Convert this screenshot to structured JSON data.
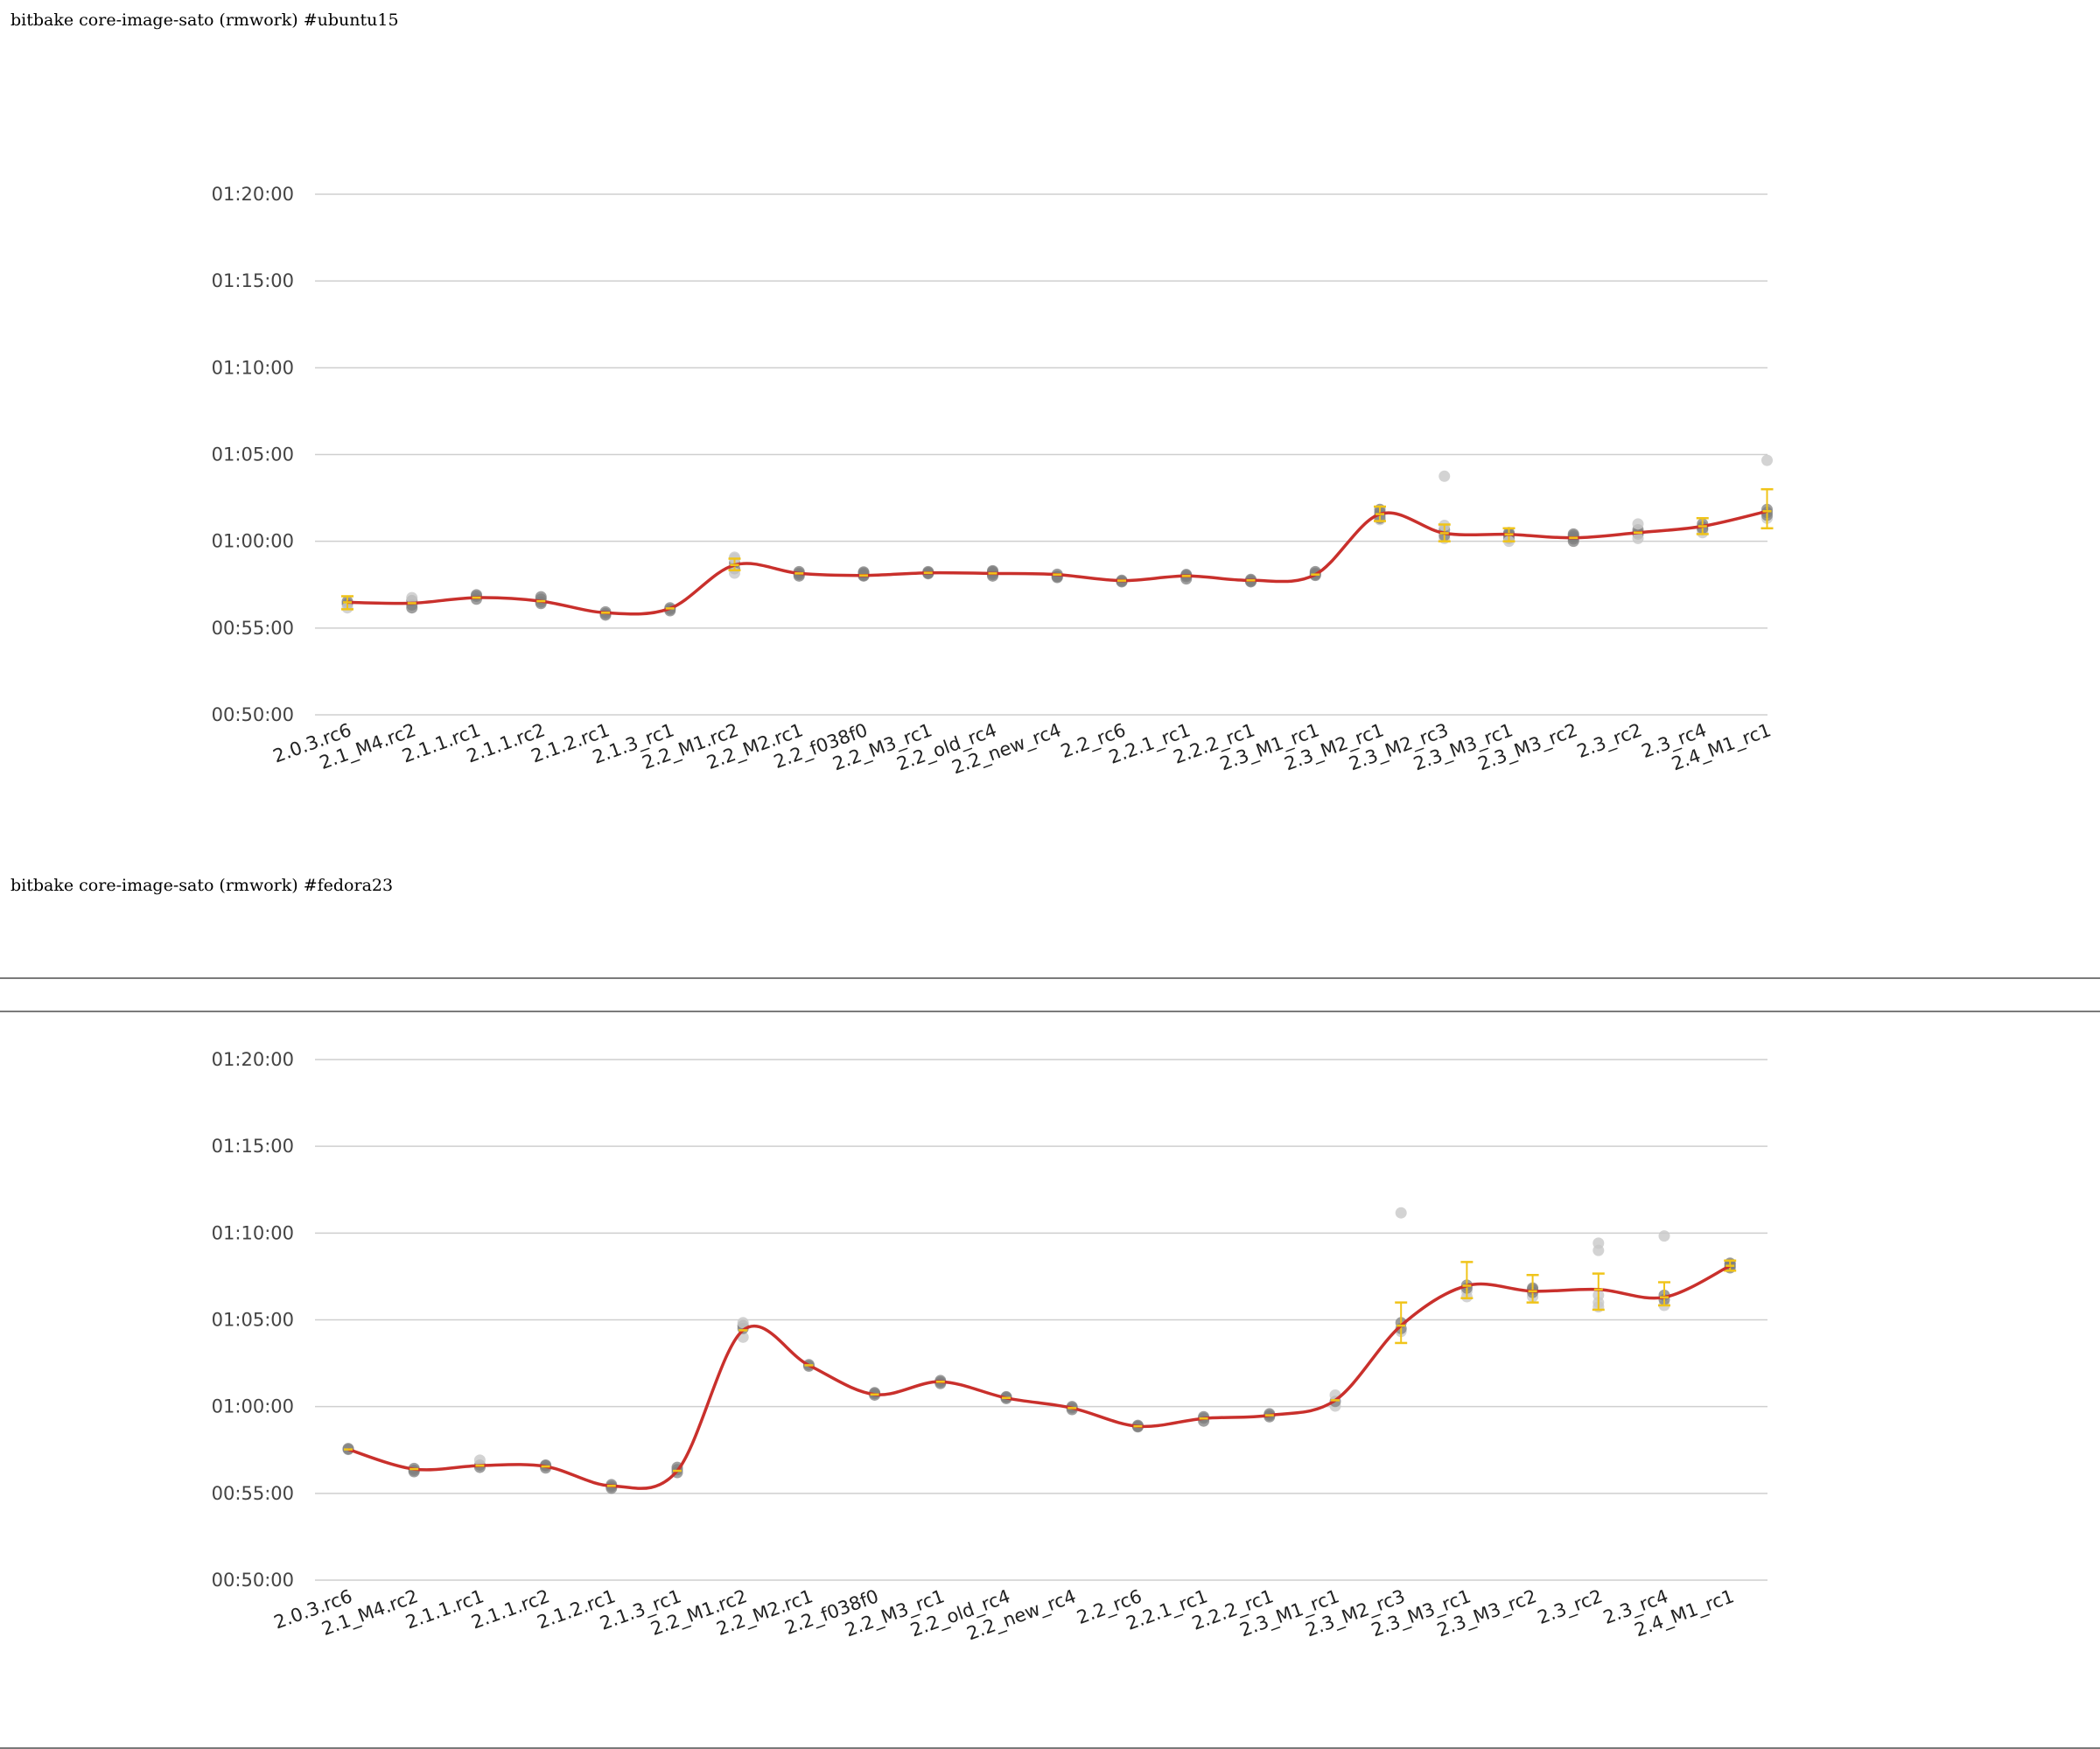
{
  "colors": {
    "trend_line": "#c9302c",
    "error_bar": "#f0c419",
    "run_point_dark": "#7f7f7f",
    "run_point_light": "#c8c8c8",
    "gridline": "#cfcfcf"
  },
  "charts": [
    {
      "title": "bitbake core-image-sato (rmwork) #ubuntu15",
      "chart_data": {
        "type": "line",
        "categories": [
          "2.0.3.rc6",
          "2.1_M4.rc2",
          "2.1.1.rc1",
          "2.1.1.rc2",
          "2.1.2.rc1",
          "2.1.3_rc1",
          "2.2_M1.rc2",
          "2.2_M2.rc1",
          "2.2_f038f0",
          "2.2_M3_rc1",
          "2.2_old_rc4",
          "2.2_new_rc4",
          "2.2_rc6",
          "2.2.1_rc1",
          "2.2.2_rc1",
          "2.3_M1_rc1",
          "2.3_M2_rc1",
          "2.3_M2_rc3",
          "2.3_M3_rc1",
          "2.3_M3_rc2",
          "2.3_rc2",
          "2.3_rc4",
          "2.4_M1_rc1"
        ],
        "y_unit": "seconds",
        "ylim": [
          3000,
          4800
        ],
        "yticks": [
          3000,
          3300,
          3600,
          3900,
          4200,
          4500,
          4800
        ],
        "ytick_labels": [
          "00:50:00",
          "00:55:00",
          "01:00:00",
          "01:05:00",
          "01:10:00",
          "01:15:00",
          "01:20:00"
        ],
        "grid": true,
        "legend": "none",
        "series": [
          {
            "values": [
              3389,
              3386,
              3405,
              3393,
              3353,
              3368,
              3518,
              3489,
              3482,
              3491,
              3489,
              3485,
              3464,
              3480,
              3465,
              3485,
              3694,
              3628,
              3624,
              3612,
              3630,
              3652,
              3704
            ],
            "error_bars": [
              [
                3365,
                3410
              ],
              null,
              null,
              null,
              null,
              null,
              [
                3500,
                3540
              ],
              null,
              null,
              null,
              null,
              null,
              null,
              null,
              null,
              null,
              [
                3670,
                3720
              ],
              [
                3600,
                3658
              ],
              [
                3600,
                3645
              ],
              null,
              null,
              [
                3625,
                3680
              ],
              [
                3645,
                3780
              ]
            ],
            "runs": [
              [
                3384,
                3392,
                3370
              ],
              [
                3380,
                3395,
                3405,
                3370
              ],
              [
                3400,
                3410,
                3415
              ],
              [
                3385,
                3400,
                3408,
                3390
              ],
              [
                3350,
                3356,
                3345
              ],
              [
                3370,
                3360,
                3365
              ],
              [
                3525,
                3540,
                3505,
                3490,
                3545
              ],
              [
                3490,
                3495,
                3480,
                3485
              ],
              [
                3485,
                3490,
                3480,
                3482,
                3494
              ],
              [
                3490,
                3495,
                3488,
                3492
              ],
              [
                3490,
                3495,
                3480,
                3485,
                3498
              ],
              [
                3480,
                3478,
                3486,
                3475
              ],
              [
                3460,
                3465,
                3462
              ],
              [
                3478,
                3485,
                3470,
                3482
              ],
              [
                3460,
                3465,
                3462,
                3468
              ],
              [
                3485,
                3490,
                3482,
                3495
              ],
              [
                3690,
                3700,
                3710,
                3675,
                3680
              ],
              [
                3610,
                3620,
                3640,
                3655,
                3825
              ],
              [
                3610,
                3620,
                3630,
                3625,
                3600
              ],
              [
                3608,
                3615,
                3625,
                3600,
                3620
              ],
              [
                3625,
                3630,
                3640,
                3610,
                3660
              ],
              [
                3640,
                3650,
                3660,
                3630,
                3645
              ],
              [
                3680,
                3690,
                3700,
                3710,
                3880
              ]
            ]
          }
        ]
      }
    },
    {
      "title": "bitbake core-image-sato (rmwork) #fedora23",
      "chart_data": {
        "type": "line",
        "categories": [
          "2.0.3.rc6",
          "2.1_M4.rc2",
          "2.1.1.rc1",
          "2.1.1.rc2",
          "2.1.2.rc1",
          "2.1.3_rc1",
          "2.2_M1.rc2",
          "2.2_M2.rc1",
          "2.2_f038f0",
          "2.2_M3_rc1",
          "2.2_old_rc4",
          "2.2_new_rc4",
          "2.2_rc6",
          "2.2.1_rc1",
          "2.2.2_rc1",
          "2.3_M1_rc1",
          "2.3_M2_rc3",
          "2.3_M3_rc1",
          "2.3_M3_rc2",
          "2.3_rc2",
          "2.3_rc4",
          "2.4_M1_rc1"
        ],
        "y_unit": "seconds",
        "ylim": [
          3000,
          4800
        ],
        "yticks": [
          3000,
          3300,
          3600,
          3900,
          4200,
          4500,
          4800
        ],
        "ytick_labels": [
          "00:50:00",
          "00:55:00",
          "01:00:00",
          "01:05:00",
          "01:10:00",
          "01:15:00",
          "01:20:00"
        ],
        "grid": true,
        "legend": "none",
        "series": [
          {
            "values": [
              3452,
              3384,
              3396,
              3393,
              3326,
              3378,
              3864,
              3743,
              3642,
              3686,
              3630,
              3595,
              3532,
              3559,
              3570,
              3622,
              3880,
              4018,
              3999,
              4005,
              3978,
              4087
            ],
            "error_bars": [
              null,
              null,
              null,
              null,
              null,
              null,
              null,
              null,
              null,
              null,
              null,
              null,
              null,
              null,
              null,
              null,
              [
                3820,
                3960
              ],
              [
                3975,
                4100
              ],
              [
                3960,
                4055
              ],
              [
                3935,
                4060
              ],
              [
                3950,
                4030
              ],
              [
                4070,
                4105
              ]
            ],
            "runs": [
              [
                3452,
                3455
              ],
              [
                3380,
                3386,
                3375
              ],
              [
                3390,
                3398,
                3415
              ],
              [
                3388,
                3395,
                3398
              ],
              [
                3324,
                3330,
                3318
              ],
              [
                3372,
                3382,
                3390
              ],
              [
                3840,
                3870,
                3880,
                3890
              ],
              [
                3740,
                3745
              ],
              [
                3640,
                3645,
                3648
              ],
              [
                3680,
                3690,
                3685
              ],
              [
                3628,
                3632,
                3634
              ],
              [
                3590,
                3596,
                3600
              ],
              [
                3530,
                3535,
                3532
              ],
              [
                3550,
                3560,
                3565
              ],
              [
                3565,
                3570,
                3575
              ],
              [
                3602,
                3618,
                3640
              ],
              [
                3860,
                3870,
                3890,
                4270
              ],
              [
                3980,
                4000,
                4010,
                4020
              ],
              [
                3980,
                3995,
                4005,
                4010
              ],
              [
                3945,
                3960,
                3985,
                4140,
                4165
              ],
              [
                3950,
                3970,
                3985,
                4190
              ],
              [
                4080,
                4085,
                4092,
                4096
              ]
            ]
          }
        ]
      }
    }
  ]
}
